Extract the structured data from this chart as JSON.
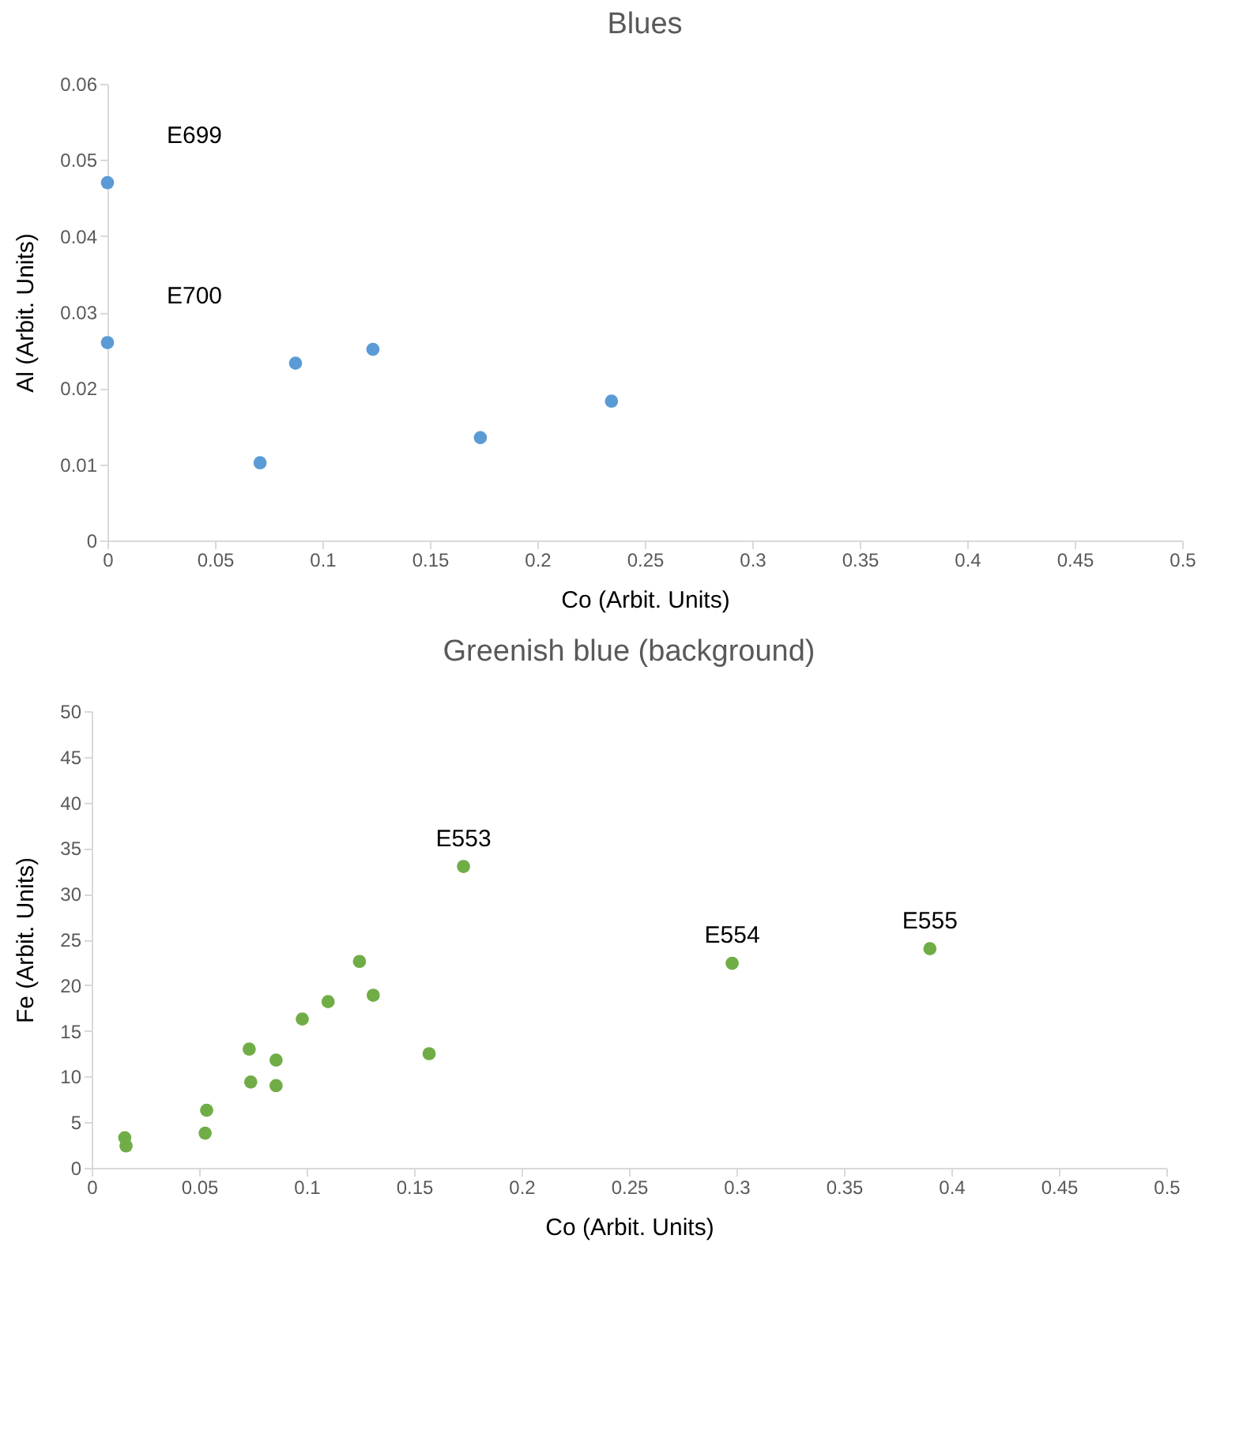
{
  "chart_data": [
    {
      "type": "scatter",
      "title": "Blues",
      "xlabel": "Co (Arbit. Units)",
      "ylabel": "Al (Arbit. Units)",
      "marker": "circle",
      "x": [
        0,
        0,
        0.071,
        0.0875,
        0.1235,
        0.1735,
        0.2345
      ],
      "series": [
        {
          "color": "#5b9bd5",
          "values": [
            0.047,
            0.026,
            0.0102,
            0.0233,
            0.0251,
            0.0135,
            0.0183
          ]
        }
      ],
      "xlim": [
        0,
        0.5
      ],
      "xticks": [
        0,
        0.05,
        0.1,
        0.15,
        0.2,
        0.25,
        0.3,
        0.35,
        0.4,
        0.45,
        0.5
      ],
      "ylim": [
        0,
        0.06
      ],
      "yticks": [
        0,
        0.01,
        0.02,
        0.03,
        0.04,
        0.05,
        0.06
      ],
      "annotations": [
        {
          "text": "E699",
          "x": 0,
          "y": 0.047
        },
        {
          "text": "E700",
          "x": 0,
          "y": 0.026
        }
      ]
    },
    {
      "type": "scatter",
      "title": "Greenish blue (background)",
      "xlabel": "Co (Arbit. Units)",
      "ylabel": "Fe (Arbit. Units)",
      "marker": "circle",
      "x": [
        0.0154,
        0.016,
        0.0528,
        0.0535,
        0.0733,
        0.074,
        0.0858,
        0.0858,
        0.098,
        0.11,
        0.1246,
        0.131,
        0.157,
        0.173,
        0.298,
        0.39
      ],
      "series": [
        {
          "color": "#70ad47",
          "values": [
            3.3,
            2.4,
            3.8,
            6.3,
            13.0,
            9.4,
            11.8,
            9.0,
            16.3,
            18.2,
            22.6,
            18.9,
            12.5,
            33.0,
            22.4,
            24.0
          ]
        }
      ],
      "xlim": [
        0,
        0.5
      ],
      "xticks": [
        0,
        0.05,
        0.1,
        0.15,
        0.2,
        0.25,
        0.3,
        0.35,
        0.4,
        0.45,
        0.5
      ],
      "ylim": [
        0,
        50
      ],
      "yticks": [
        0,
        5,
        10,
        15,
        20,
        25,
        30,
        35,
        40,
        45,
        50
      ],
      "annotations": [
        {
          "text": "E553",
          "x": 0.173,
          "y": 33.0
        },
        {
          "text": "E554",
          "x": 0.298,
          "y": 22.4
        },
        {
          "text": "E555",
          "x": 0.39,
          "y": 24.0
        }
      ]
    }
  ]
}
